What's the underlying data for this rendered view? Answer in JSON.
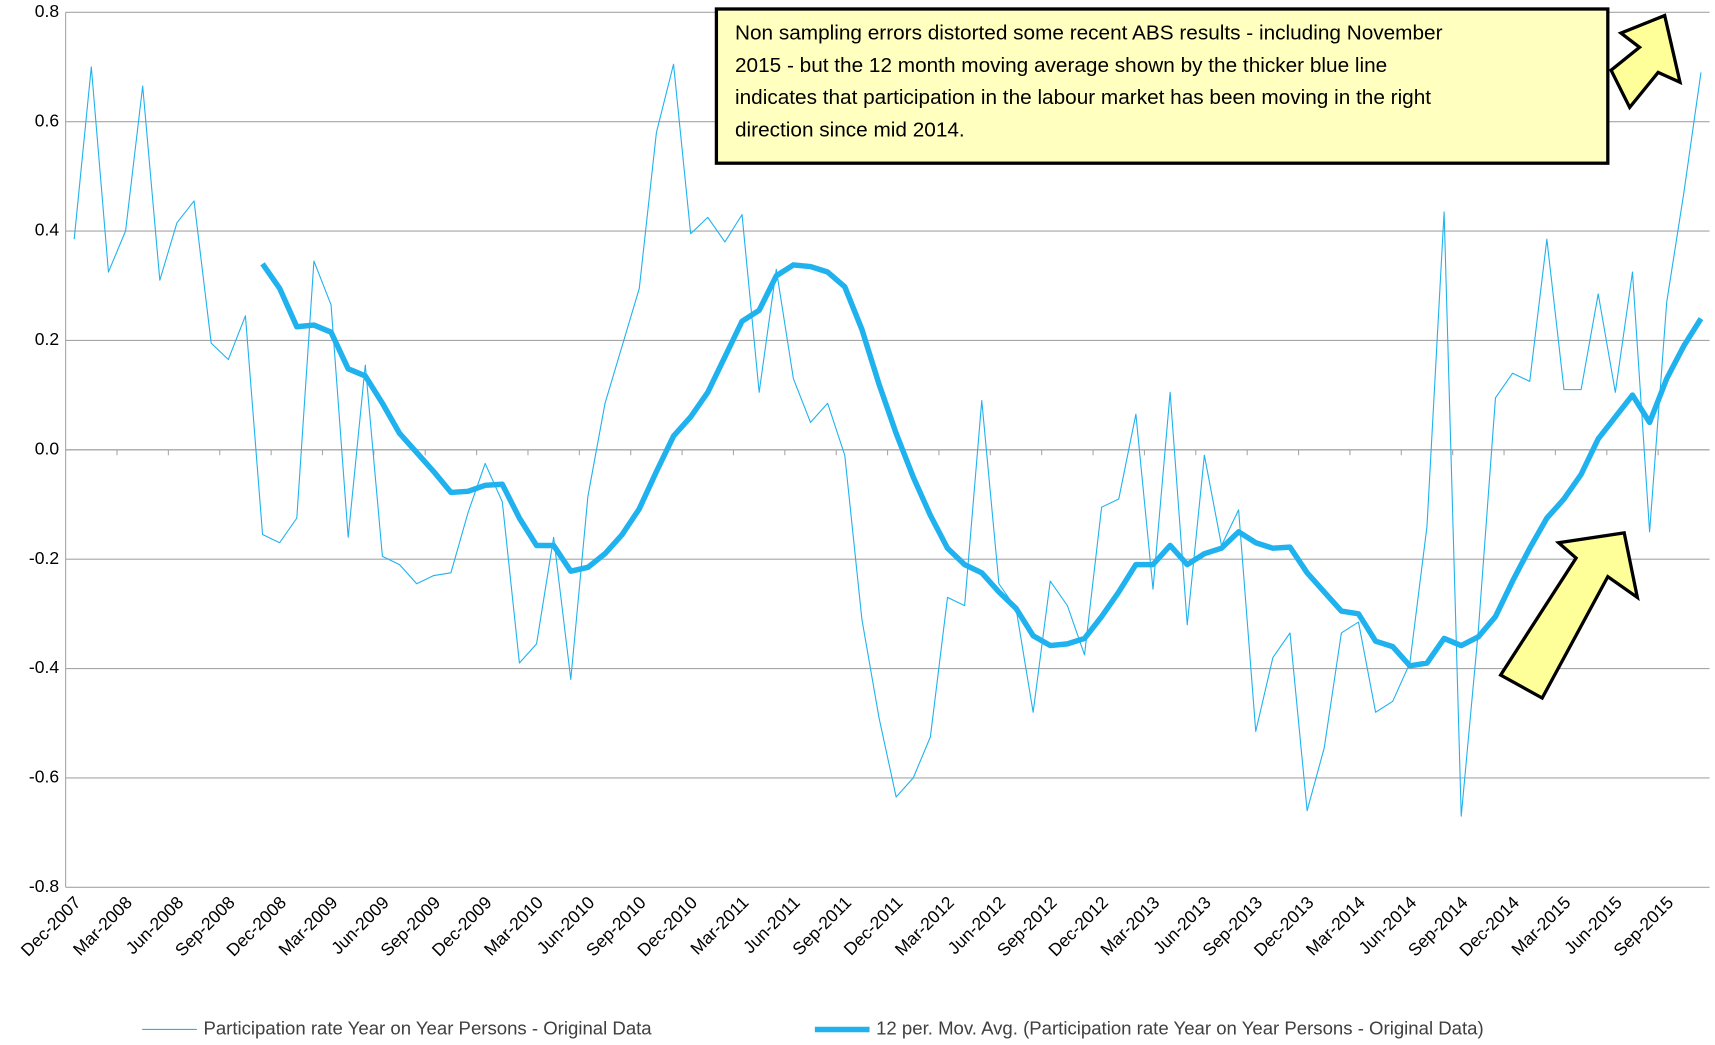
{
  "chart_data": {
    "type": "line",
    "categories": [
      "Dec-2007",
      null,
      null,
      "Mar-2008",
      null,
      null,
      "Jun-2008",
      null,
      null,
      "Sep-2008",
      null,
      null,
      "Dec-2008",
      null,
      null,
      "Mar-2009",
      null,
      null,
      "Jun-2009",
      null,
      null,
      "Sep-2009",
      null,
      null,
      "Dec-2009",
      null,
      null,
      "Mar-2010",
      null,
      null,
      "Jun-2010",
      null,
      null,
      "Sep-2010",
      null,
      null,
      "Dec-2010",
      null,
      null,
      "Mar-2011",
      null,
      null,
      "Jun-2011",
      null,
      null,
      "Sep-2011",
      null,
      null,
      "Dec-2011",
      null,
      null,
      "Mar-2012",
      null,
      null,
      "Jun-2012",
      null,
      null,
      "Sep-2012",
      null,
      null,
      "Dec-2012",
      null,
      null,
      "Mar-2013",
      null,
      null,
      "Jun-2013",
      null,
      null,
      "Sep-2013",
      null,
      null,
      "Dec-2013",
      null,
      null,
      "Mar-2014",
      null,
      null,
      "Jun-2014",
      null,
      null,
      "Sep-2014",
      null,
      null,
      "Dec-2014",
      null,
      null,
      "Mar-2015",
      null,
      null,
      "Jun-2015",
      null,
      null,
      "Sep-2015",
      null,
      null
    ],
    "series": [
      {
        "name": "Participation rate Year on Year Persons - Original Data",
        "color": "#1fb2ee",
        "width": 1,
        "values": [
          0.385,
          0.7,
          0.325,
          0.4,
          0.665,
          0.31,
          0.415,
          0.455,
          0.195,
          0.165,
          0.245,
          -0.155,
          -0.17,
          -0.125,
          0.345,
          0.265,
          -0.16,
          0.155,
          -0.195,
          -0.21,
          -0.245,
          -0.23,
          -0.225,
          -0.115,
          -0.025,
          -0.095,
          -0.39,
          -0.355,
          -0.16,
          -0.42,
          -0.085,
          0.085,
          0.19,
          0.295,
          0.58,
          0.705,
          0.395,
          0.425,
          0.38,
          0.43,
          0.105,
          0.33,
          0.13,
          0.05,
          0.085,
          -0.01,
          -0.31,
          -0.49,
          -0.635,
          -0.6,
          -0.525,
          -0.27,
          -0.285,
          0.09,
          -0.245,
          -0.29,
          -0.48,
          -0.24,
          -0.285,
          -0.375,
          -0.105,
          -0.09,
          0.065,
          -0.255,
          0.105,
          -0.32,
          -0.01,
          -0.175,
          -0.11,
          -0.515,
          -0.38,
          -0.335,
          -0.66,
          -0.545,
          -0.335,
          -0.315,
          -0.48,
          -0.46,
          -0.39,
          -0.14,
          0.435,
          -0.67,
          -0.33,
          0.095,
          0.14,
          0.125,
          0.385,
          0.11,
          0.11,
          0.285,
          0.105,
          0.325,
          -0.15,
          0.27,
          0.47,
          0.69
        ]
      },
      {
        "name": "12 per. Mov. Avg. (Participation rate Year on Year Persons - Original Data)",
        "color": "#1fb2ee",
        "width": 5,
        "values": [
          null,
          null,
          null,
          null,
          null,
          null,
          null,
          null,
          null,
          null,
          null,
          0.34,
          0.295,
          0.225,
          0.228,
          0.215,
          0.148,
          0.135,
          0.085,
          0.03,
          -0.005,
          -0.04,
          -0.078,
          -0.076,
          -0.065,
          -0.063,
          -0.125,
          -0.175,
          -0.175,
          -0.222,
          -0.215,
          -0.19,
          -0.155,
          -0.108,
          -0.04,
          0.025,
          0.06,
          0.105,
          0.17,
          0.235,
          0.255,
          0.318,
          0.338,
          0.335,
          0.325,
          0.298,
          0.22,
          0.12,
          0.03,
          -0.05,
          -0.12,
          -0.18,
          -0.21,
          -0.225,
          -0.26,
          -0.29,
          -0.34,
          -0.358,
          -0.355,
          -0.345,
          -0.305,
          -0.26,
          -0.21,
          -0.21,
          -0.175,
          -0.21,
          -0.19,
          -0.18,
          -0.15,
          -0.17,
          -0.18,
          -0.178,
          -0.225,
          -0.26,
          -0.295,
          -0.3,
          -0.35,
          -0.36,
          -0.395,
          -0.39,
          -0.345,
          -0.358,
          -0.342,
          -0.305,
          -0.24,
          -0.18,
          -0.125,
          -0.09,
          -0.045,
          0.02,
          0.06,
          0.1,
          0.05,
          0.13,
          0.19,
          0.24
        ]
      }
    ],
    "ylim": [
      -0.8,
      0.8
    ],
    "yticks": [
      -0.8,
      -0.6,
      -0.4,
      -0.2,
      {
        "value": 0,
        "label": "0.0"
      },
      0.2,
      0.4,
      0.6,
      0.8
    ],
    "grid": true,
    "legend": "bottom",
    "annotation": [
      "Non sampling errors distorted some recent ABS results - including November",
      "2015 - but the 12 month moving average shown by the thicker blue line",
      "indicates that participation in the labour market has been moving in the right",
      "direction since mid 2014."
    ]
  }
}
